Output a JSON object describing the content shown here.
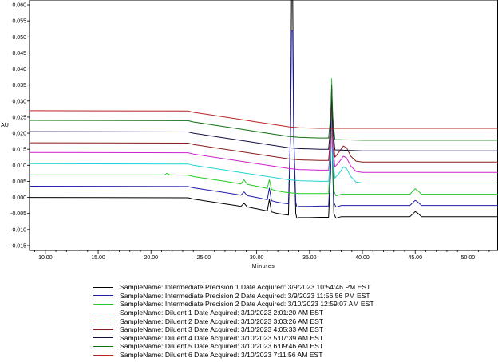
{
  "chart_data": {
    "type": "line",
    "xlabel": "Minutes",
    "ylabel": "AU",
    "xlim": [
      8.5,
      52.8
    ],
    "ylim": [
      -0.0165,
      0.0615
    ],
    "x_ticks": [
      10,
      15,
      20,
      25,
      30,
      35,
      40,
      45,
      50
    ],
    "x_tick_labels": [
      "10.00",
      "15.00",
      "20.00",
      "25.00",
      "30.00",
      "35.00",
      "40.00",
      "45.00",
      "50.00"
    ],
    "y_ticks": [
      -0.015,
      -0.01,
      -0.005,
      0,
      0.005,
      0.01,
      0.015,
      0.02,
      0.025,
      0.03,
      0.035,
      0.04,
      0.045,
      0.05,
      0.055,
      0.06
    ],
    "y_tick_labels": [
      "-0.015",
      "-0.010",
      "-0.005",
      "0.000",
      "0.005",
      "0.010",
      "0.015",
      "0.020",
      "0.025",
      "0.030",
      "0.035",
      "0.040",
      "0.045",
      "0.050",
      "0.055",
      "0.060"
    ],
    "legend_position": "bottom",
    "series": [
      {
        "name": "SampleName: Intermediate Precision 1 Date Acquired: 3/9/2023 10:54:46 PM EST",
        "color": "#000000",
        "x": [
          8.5,
          23.5,
          24,
          25,
          26,
          27,
          28,
          28.5,
          28.8,
          29.1,
          29.5,
          30,
          31,
          31.2,
          31.4,
          31.7,
          32,
          32.5,
          33,
          33.2,
          33.3,
          33.4,
          33.5,
          33.7,
          33.8,
          34,
          35,
          36,
          36.8,
          37,
          37.1,
          37.2,
          37.3,
          37.5,
          38,
          40,
          44.5,
          45,
          45.2,
          45.6,
          46,
          52.8
        ],
        "y": [
          0,
          -0.0001,
          -0.0005,
          -0.001,
          -0.0015,
          -0.002,
          -0.0025,
          -0.0028,
          -0.0018,
          -0.0029,
          -0.0032,
          -0.0035,
          -0.0042,
          -0.0006,
          -0.0045,
          -0.0048,
          -0.005,
          -0.0053,
          -0.0055,
          0.02,
          0.064,
          0.064,
          0.02,
          -0.005,
          -0.0065,
          -0.0063,
          -0.0063,
          -0.0062,
          -0.0062,
          0.008,
          0.032,
          0.008,
          -0.005,
          -0.0065,
          -0.006,
          -0.006,
          -0.006,
          -0.0044,
          -0.0048,
          -0.006,
          -0.006,
          -0.006
        ]
      },
      {
        "name": "SampleName: Intermediate Precision 2 Date Acquired: 3/9/2023 11:56:56 PM EST",
        "color": "#1f1fa8",
        "x": [
          8.5,
          23.5,
          24,
          25,
          26,
          27,
          28,
          28.5,
          28.8,
          29.1,
          29.5,
          30,
          31,
          31.2,
          31.4,
          31.7,
          32,
          32.5,
          33,
          33.2,
          33.3,
          33.4,
          33.5,
          33.7,
          33.8,
          34,
          35,
          36,
          36.8,
          37,
          37.1,
          37.2,
          37.3,
          37.5,
          38,
          40,
          44.5,
          45,
          45.2,
          45.6,
          46,
          52.8
        ],
        "y": [
          0.0035,
          0.0034,
          0.003,
          0.0025,
          0.002,
          0.0015,
          0.001,
          0.0007,
          0.0017,
          0.0006,
          0.0003,
          0,
          -0.0007,
          0.0029,
          -0.001,
          -0.0013,
          -0.0015,
          -0.0018,
          -0.002,
          0.02,
          0.052,
          0.052,
          0.02,
          -0.0015,
          -0.003,
          -0.0028,
          -0.0028,
          -0.0027,
          -0.0027,
          0.01,
          0.034,
          0.01,
          -0.0015,
          -0.003,
          -0.0025,
          -0.0025,
          -0.0025,
          -0.0009,
          -0.0013,
          -0.0025,
          -0.0025,
          -0.0025
        ]
      },
      {
        "name": "SampleName: Intermediate Precision 2 Date Acquired: 3/10/2023 12:59:07 AM EST",
        "color": "#22cc22",
        "x": [
          8.5,
          21.3,
          21.5,
          21.8,
          23.5,
          24,
          25,
          26,
          27,
          28,
          28.5,
          28.8,
          29.1,
          29.5,
          30,
          31,
          31.2,
          31.4,
          31.7,
          32,
          32.5,
          33,
          33.5,
          34,
          35,
          36,
          36.8,
          37,
          37.1,
          37.2,
          37.3,
          37.5,
          38,
          40,
          44.5,
          45,
          45.2,
          45.6,
          46,
          52.8
        ],
        "y": [
          0.007,
          0.007,
          0.0075,
          0.007,
          0.0069,
          0.0065,
          0.006,
          0.0055,
          0.005,
          0.0045,
          0.0042,
          0.0055,
          0.0041,
          0.0038,
          0.0035,
          0.0028,
          0.0055,
          0.0025,
          0.0022,
          0.002,
          0.0017,
          0.0015,
          0.0013,
          0.0012,
          0.0012,
          0.0012,
          0.0012,
          0.015,
          0.037,
          0.015,
          0.002,
          0.0005,
          0.001,
          0.001,
          0.001,
          0.0027,
          0.0022,
          0.001,
          0.001,
          0.001
        ]
      },
      {
        "name": "SampleName: Diluent 1 Date Acquired: 3/10/2023 2:01:20 AM EST",
        "color": "#22d3d3",
        "x": [
          8.5,
          23.5,
          24,
          26,
          28,
          30,
          32,
          33,
          34,
          35,
          36,
          36.8,
          37,
          37.1,
          37.2,
          37.4,
          37.8,
          38.2,
          38.5,
          38.9,
          39.4,
          40,
          52.8
        ],
        "y": [
          0.0105,
          0.0104,
          0.01,
          0.009,
          0.008,
          0.007,
          0.006,
          0.0055,
          0.0052,
          0.0051,
          0.005,
          0.005,
          0.012,
          0.03,
          0.012,
          0.006,
          0.0075,
          0.0095,
          0.009,
          0.0065,
          0.0048,
          0.0045,
          0.0045
        ]
      },
      {
        "name": "SampleName: Diluent 2 Date Acquired: 3/10/2023 3:03:26 AM EST",
        "color": "#cc22cc",
        "x": [
          8.5,
          23.5,
          24,
          26,
          28,
          30,
          32,
          33,
          34,
          35,
          36,
          36.8,
          37,
          37.1,
          37.2,
          37.4,
          37.8,
          38.2,
          38.5,
          38.9,
          39.4,
          40,
          52.8
        ],
        "y": [
          0.014,
          0.0139,
          0.0135,
          0.0125,
          0.0115,
          0.0105,
          0.0095,
          0.009,
          0.0087,
          0.0086,
          0.0085,
          0.0085,
          0.016,
          0.032,
          0.016,
          0.0095,
          0.011,
          0.0128,
          0.0123,
          0.0098,
          0.0081,
          0.0078,
          0.0078
        ]
      },
      {
        "name": "SampleName: Diluent 3 Date Acquired: 3/10/2023 4:05:33 AM EST",
        "color": "#8b1a1a",
        "x": [
          8.5,
          23.5,
          24,
          26,
          28,
          30,
          32,
          33,
          34,
          35,
          36,
          36.8,
          37,
          37.1,
          37.2,
          37.4,
          37.8,
          38.2,
          38.5,
          38.9,
          39.4,
          40,
          52.8
        ],
        "y": [
          0.017,
          0.0169,
          0.0165,
          0.0155,
          0.0145,
          0.0135,
          0.0125,
          0.012,
          0.0117,
          0.0116,
          0.0115,
          0.0115,
          0.019,
          0.033,
          0.019,
          0.0125,
          0.0142,
          0.016,
          0.0155,
          0.0128,
          0.0113,
          0.011,
          0.011
        ]
      },
      {
        "name": "SampleName: Diluent 4 Date Acquired: 3/10/2023 5:07:39 AM EST",
        "color": "#101040",
        "x": [
          8.5,
          23.5,
          24,
          26,
          28,
          30,
          32,
          33,
          34,
          35,
          36,
          36.8,
          37,
          37.1,
          37.2,
          37.4,
          40,
          52.8
        ],
        "y": [
          0.0205,
          0.0204,
          0.02,
          0.019,
          0.018,
          0.017,
          0.016,
          0.0155,
          0.0152,
          0.0151,
          0.015,
          0.015,
          0.022,
          0.034,
          0.022,
          0.0148,
          0.0145,
          0.0145
        ]
      },
      {
        "name": "SampleName: Diluent 5 Date Acquired: 3/10/2023 6:09:46 AM EST",
        "color": "#107010",
        "x": [
          8.5,
          23.5,
          24,
          26,
          28,
          30,
          32,
          33,
          34,
          35,
          36,
          36.8,
          37,
          37.1,
          37.2,
          37.4,
          40,
          52.8
        ],
        "y": [
          0.024,
          0.0239,
          0.0235,
          0.0225,
          0.0215,
          0.0205,
          0.0195,
          0.019,
          0.0187,
          0.0186,
          0.0185,
          0.0185,
          0.025,
          0.035,
          0.025,
          0.018,
          0.0178,
          0.0178
        ]
      },
      {
        "name": "SampleName: Diluent 6 Date Acquired: 3/10/2023 7:11:56 AM EST",
        "color": "#bb2222",
        "x": [
          8.5,
          23.5,
          24,
          26,
          28,
          30,
          32,
          33,
          34,
          35,
          36,
          36.8,
          37,
          37.1,
          37.2,
          37.4,
          40,
          52.8
        ],
        "y": [
          0.027,
          0.0269,
          0.0265,
          0.0255,
          0.0245,
          0.0235,
          0.0225,
          0.022,
          0.0217,
          0.0216,
          0.0215,
          0.0215,
          0.0215,
          0.0215,
          0.0215,
          0.0215,
          0.0215,
          0.0215
        ]
      }
    ]
  }
}
